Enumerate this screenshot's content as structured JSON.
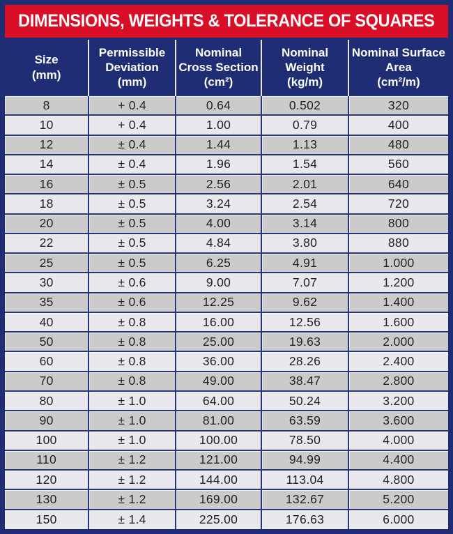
{
  "title": "DIMENSIONS, WEIGHTS & TOLERANCE OF SQUARES",
  "colors": {
    "banner_red": "#d80f26",
    "navy": "#1e2d74",
    "grid_blue": "#25357c",
    "row_dark": "#cbcbcb",
    "row_light": "#e9e9ed",
    "header_text": "#ffffff",
    "cell_text": "#222222"
  },
  "chart_data": {
    "type": "table",
    "title": "DIMENSIONS, WEIGHTS & TOLERANCE OF SQUARES",
    "columns": [
      "Size (mm)",
      "Permissible Deviation (mm)",
      "Nominal Cross Section (cm²)",
      "Nominal Weight (kg/m)",
      "Nominal Surface Area (cm²/m)"
    ],
    "rows": [
      [
        "8",
        "+ 0.4",
        "0.64",
        "0.502",
        "320"
      ],
      [
        "10",
        "+ 0.4",
        "1.00",
        "0.79",
        "400"
      ],
      [
        "12",
        "± 0.4",
        "1.44",
        "1.13",
        "480"
      ],
      [
        "14",
        "± 0.4",
        "1.96",
        "1.54",
        "560"
      ],
      [
        "16",
        "± 0.5",
        "2.56",
        "2.01",
        "640"
      ],
      [
        "18",
        "± 0.5",
        "3.24",
        "2.54",
        "720"
      ],
      [
        "20",
        "± 0.5",
        "4.00",
        "3.14",
        "800"
      ],
      [
        "22",
        "± 0.5",
        "4.84",
        "3.80",
        "880"
      ],
      [
        "25",
        "± 0.5",
        "6.25",
        "4.91",
        "1.000"
      ],
      [
        "30",
        "± 0.6",
        "9.00",
        "7.07",
        "1.200"
      ],
      [
        "35",
        "± 0.6",
        "12.25",
        "9.62",
        "1.400"
      ],
      [
        "40",
        "± 0.8",
        "16.00",
        "12.56",
        "1.600"
      ],
      [
        "50",
        "± 0.8",
        "25.00",
        "19.63",
        "2.000"
      ],
      [
        "60",
        "± 0.8",
        "36.00",
        "28.26",
        "2.400"
      ],
      [
        "70",
        "± 0.8",
        "49.00",
        "38.47",
        "2.800"
      ],
      [
        "80",
        "± 1.0",
        "64.00",
        "50.24",
        "3.200"
      ],
      [
        "90",
        "± 1.0",
        "81.00",
        "63.59",
        "3.600"
      ],
      [
        "100",
        "± 1.0",
        "100.00",
        "78.50",
        "4.000"
      ],
      [
        "110",
        "± 1.2",
        "121.00",
        "94.99",
        "4.400"
      ],
      [
        "120",
        "± 1.2",
        "144.00",
        "113.04",
        "4.800"
      ],
      [
        "130",
        "± 1.2",
        "169.00",
        "132.67",
        "5.200"
      ],
      [
        "150",
        "± 1.4",
        "225.00",
        "176.63",
        "6.000"
      ]
    ]
  },
  "table": {
    "header_lines": [
      [
        "Size",
        "(mm)"
      ],
      [
        "Permissible",
        "Deviation",
        "(mm)"
      ],
      [
        "Nominal",
        "Cross Section",
        "(cm²)"
      ],
      [
        "Nominal",
        "Weight",
        "(kg/m)"
      ],
      [
        "Nominal Surface",
        "Area",
        "(cm²/m)"
      ]
    ]
  }
}
